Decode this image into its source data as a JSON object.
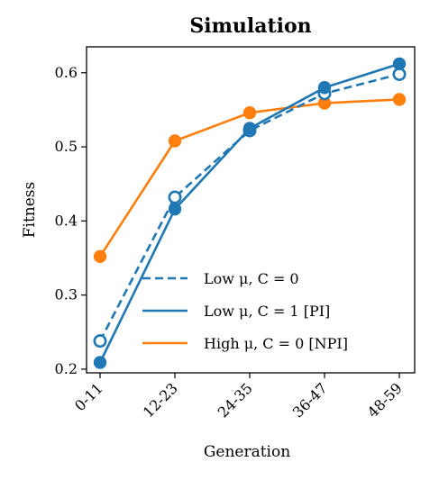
{
  "chart_data": {
    "type": "line",
    "title": "Simulation",
    "xlabel": "Generation",
    "ylabel": "Fitness",
    "categories": [
      "0-11",
      "12-23",
      "24-35",
      "36-47",
      "48-59"
    ],
    "ylim": [
      0.195,
      0.635
    ],
    "yticks": [
      "0.2",
      "0.3",
      "0.4",
      "0.5",
      "0.6"
    ],
    "grid": false,
    "legend_position": "bottom-right",
    "series": [
      {
        "name": "Low μ, C = 0",
        "values": [
          0.238,
          0.432,
          0.522,
          0.572,
          0.598
        ],
        "color": "#1f77b4",
        "line": "dashed",
        "marker": "open-circle"
      },
      {
        "name": "Low μ, C = 1 [PI]",
        "values": [
          0.209,
          0.416,
          0.525,
          0.58,
          0.612
        ],
        "color": "#1f77b4",
        "line": "solid",
        "marker": "filled-circle"
      },
      {
        "name": "High μ, C = 0 [NPI]",
        "values": [
          0.352,
          0.508,
          0.546,
          0.559,
          0.564
        ],
        "color": "#ff7f0e",
        "line": "solid",
        "marker": "filled-circle"
      }
    ]
  }
}
